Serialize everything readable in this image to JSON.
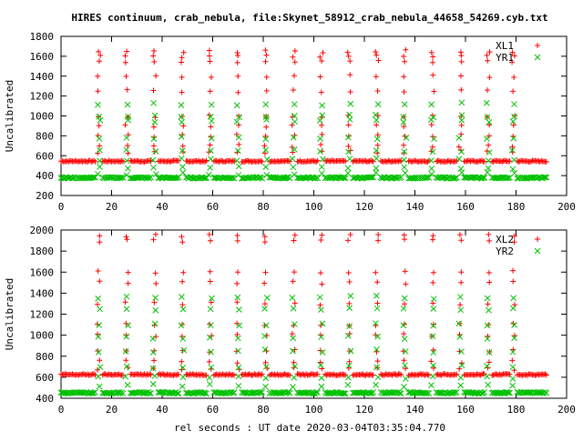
{
  "page": {
    "title": "HIRES continuum, crab_nebula, file:Skynet_58912_crab_nebula_44658_54269.cyb.txt",
    "xlabel": "rel seconds : UT date 2020-03-04T03:35:04.770"
  },
  "chart_data": [
    {
      "type": "scatter",
      "ylabel": "Uncalibrated",
      "xlim": [
        0,
        200
      ],
      "ylim": [
        200,
        1800
      ],
      "x_ticks": [
        0,
        20,
        40,
        60,
        80,
        100,
        120,
        140,
        160,
        180,
        200
      ],
      "y_ticks": [
        200,
        400,
        600,
        800,
        1000,
        1200,
        1400,
        1600,
        1800
      ],
      "grid": false,
      "legend_position": "top-right",
      "x_range": [
        0,
        192
      ],
      "sample_step": 0.5,
      "spike_times": [
        15,
        26,
        37,
        48,
        59,
        70,
        81,
        92,
        103,
        114,
        125,
        136,
        147,
        158,
        169,
        179
      ],
      "series": [
        {
          "name": "XL1",
          "marker": "plus",
          "color": "#ff0000",
          "baseline": 545,
          "spike_peak": 1650,
          "spike_values": [
            1650,
            1600,
            1550,
            1400,
            1250,
            1000,
            900,
            800,
            700,
            640
          ]
        },
        {
          "name": "YR1",
          "marker": "cross",
          "color": "#00c000",
          "baseline": 378,
          "spike_peak": 1120,
          "spike_values": [
            1120,
            1000,
            950,
            780,
            650,
            560,
            480,
            420
          ]
        }
      ]
    },
    {
      "type": "scatter",
      "ylabel": "Uncalibrated",
      "xlim": [
        0,
        200
      ],
      "ylim": [
        400,
        2000
      ],
      "x_ticks": [
        0,
        20,
        40,
        60,
        80,
        100,
        120,
        140,
        160,
        180,
        200
      ],
      "y_ticks": [
        400,
        600,
        800,
        1000,
        1200,
        1400,
        1600,
        1800,
        2000
      ],
      "grid": false,
      "legend_position": "top-right",
      "x_range": [
        0,
        192
      ],
      "sample_step": 0.5,
      "spike_times": [
        15,
        26,
        37,
        48,
        59,
        70,
        81,
        92,
        103,
        114,
        125,
        136,
        147,
        158,
        169,
        179
      ],
      "series": [
        {
          "name": "XL2",
          "marker": "plus",
          "color": "#ff0000",
          "baseline": 625,
          "spike_peak": 1950,
          "spike_values": [
            1950,
            1900,
            1600,
            1500,
            1300,
            1100,
            1000,
            850,
            750,
            680
          ]
        },
        {
          "name": "YR2",
          "marker": "cross",
          "color": "#00c000",
          "baseline": 452,
          "spike_peak": 1360,
          "spike_values": [
            1360,
            1250,
            1100,
            980,
            850,
            700,
            600,
            520
          ]
        }
      ]
    }
  ]
}
